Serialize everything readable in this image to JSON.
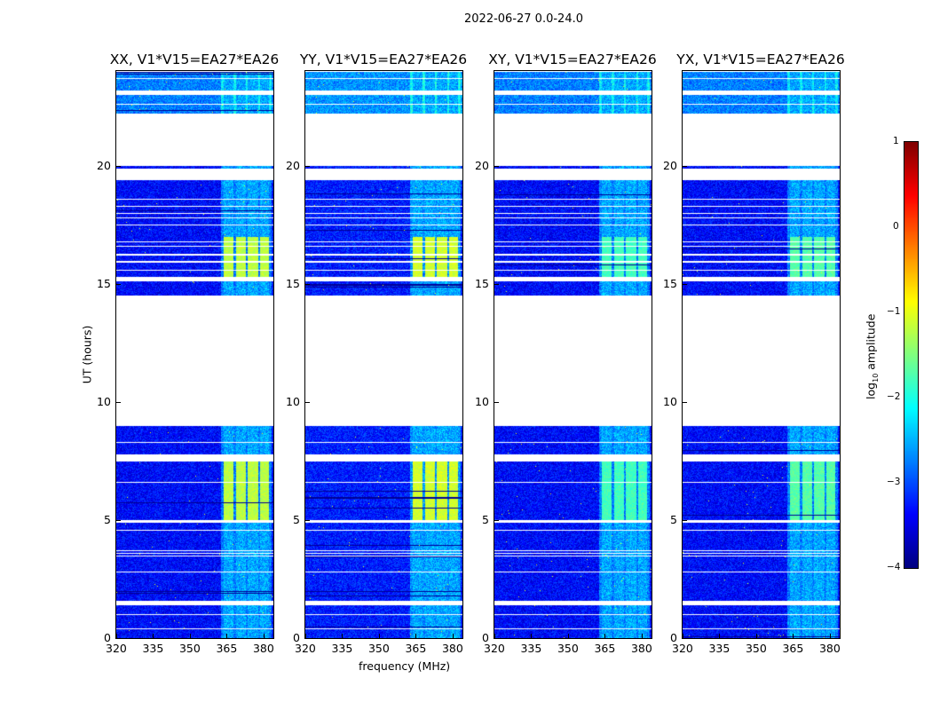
{
  "chart_data": {
    "type": "heatmap",
    "title": "2022-06-27 0.0-24.0",
    "xlabel": "frequency (MHz)",
    "ylabel": "UT (hours)",
    "xlim": [
      320,
      384
    ],
    "ylim": [
      0,
      24
    ],
    "xticks": [
      "320",
      "335",
      "350",
      "365",
      "380"
    ],
    "xtick_values": [
      320,
      335,
      350,
      365,
      380
    ],
    "yticks": [
      "0",
      "5",
      "10",
      "15",
      "20"
    ],
    "ytick_values": [
      0,
      5,
      10,
      15,
      20
    ],
    "panels": [
      {
        "title": "XX, V1*V15=EA27*EA26",
        "pol": "XX",
        "bright_level": -1.2
      },
      {
        "title": "YY, V1*V15=EA27*EA26",
        "pol": "YY",
        "bright_level": -1.1
      },
      {
        "title": "XY, V1*V15=EA27*EA26",
        "pol": "XY",
        "bright_level": -1.8
      },
      {
        "title": "YX, V1*V15=EA27*EA26",
        "pol": "YX",
        "bright_level": -1.7
      }
    ],
    "data_segments_hours": [
      [
        0,
        1.4
      ],
      [
        1.6,
        4.9
      ],
      [
        5.0,
        7.5
      ],
      [
        7.8,
        9.0
      ],
      [
        14.5,
        15.1
      ],
      [
        15.3,
        15.9
      ],
      [
        16.0,
        16.2
      ],
      [
        16.3,
        19.4
      ],
      [
        19.9,
        20.0
      ],
      [
        22.2,
        23.0
      ],
      [
        23.2,
        24
      ]
    ],
    "flag_lines_hours": [
      0.4,
      1.0,
      2.8,
      3.5,
      3.6,
      3.7,
      4.6,
      6.6,
      8.3,
      16.6,
      16.8,
      17.5,
      17.8,
      18.0,
      18.3,
      18.6,
      15.6,
      22.6,
      23.7
    ],
    "rfi_bands_mhz": [
      [
        363.5,
        367.5
      ],
      [
        368.5,
        372.5
      ],
      [
        373.5,
        377.5
      ],
      [
        378.5,
        382
      ]
    ],
    "bright_hours": [
      [
        5.0,
        7.5
      ],
      [
        15.3,
        17.0
      ]
    ],
    "colorbar": {
      "label": "log",
      "label_sub": "10",
      "label_rest": " amplitude",
      "range": [
        -4,
        1
      ],
      "ticks": [
        "1",
        "0",
        "−1",
        "−2",
        "−3",
        "−4"
      ],
      "tick_values": [
        1,
        0,
        -1,
        -2,
        -3,
        -4
      ],
      "colormap": "jet"
    }
  }
}
